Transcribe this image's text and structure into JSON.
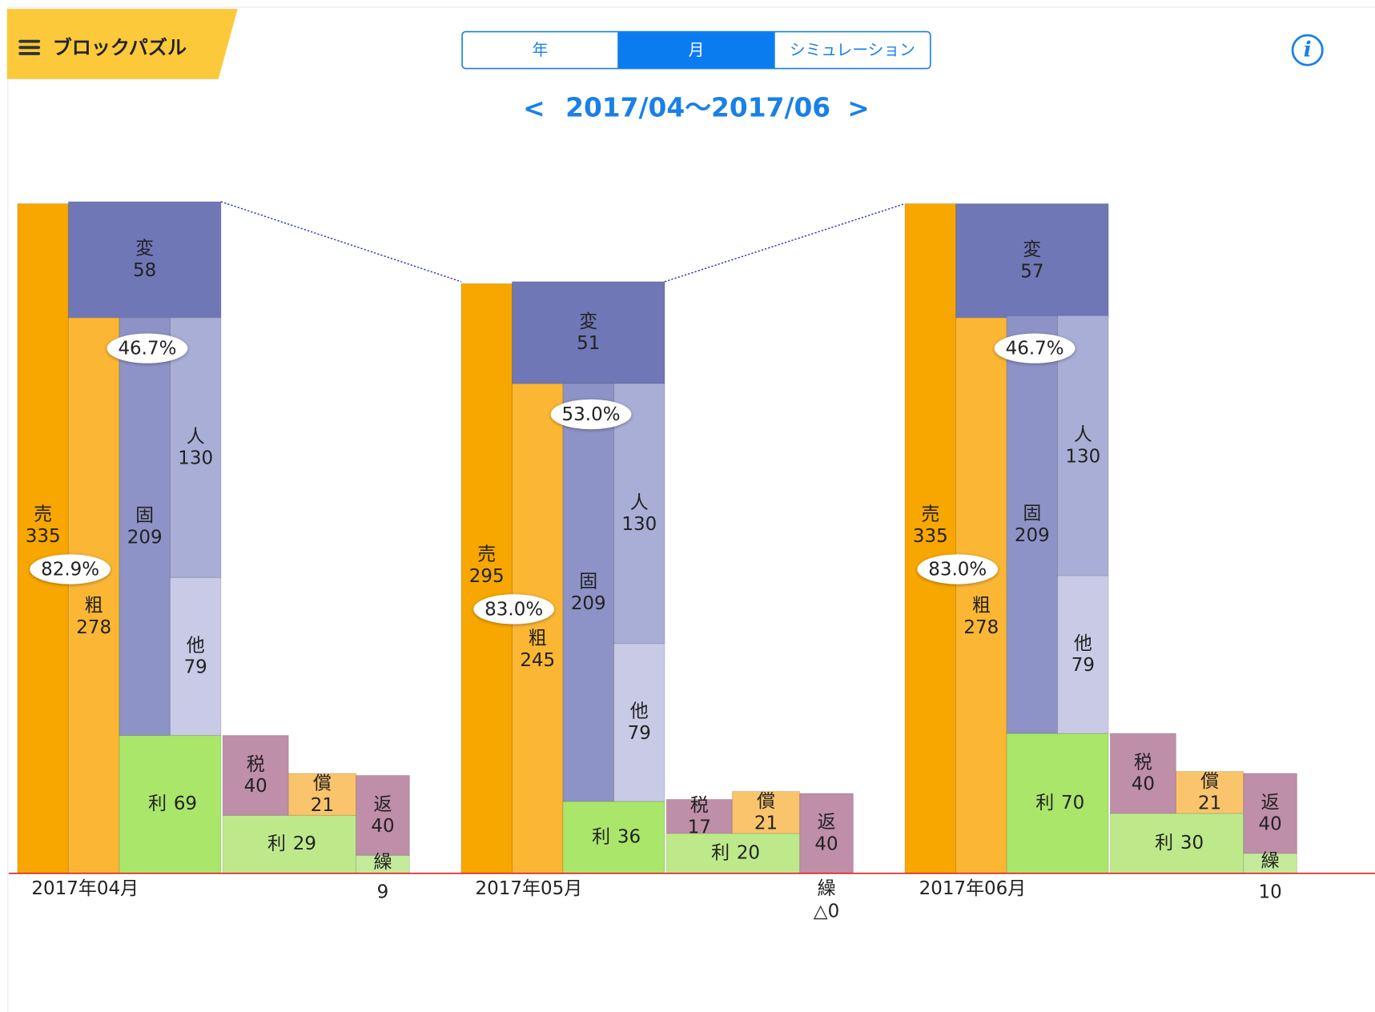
{
  "header": {
    "title": "ブロックパズル",
    "tabs": [
      "年",
      "月",
      "シミュレーション"
    ],
    "selected_tab": 1,
    "prev": "<",
    "period": "2017/04～2017/06",
    "next": ">"
  },
  "colors": {
    "sales": "#f8a700",
    "gross": "#fbb634",
    "variable": "#6f77b7",
    "fixed": "#8d93c6",
    "labor": "#a9aed6",
    "other": "#c8cae6",
    "profit": "#a9e66a",
    "tax": "#bf8ea9",
    "profit2": "#bde98b",
    "depreciation": "#f9c46b",
    "repay": "#bf8ea9",
    "carry": "#c3eb9b",
    "baseline": "#e02020",
    "connector": "#2a2ad0"
  },
  "months": [
    {
      "label": "2017年04月",
      "gross_ratio": "82.9%",
      "labor_ratio": "46.7%",
      "blocks": {
        "sales": {
          "name": "売",
          "value": 335
        },
        "gross": {
          "name": "粗",
          "value": 278
        },
        "variable": {
          "name": "変",
          "value": 58
        },
        "fixed": {
          "name": "固",
          "value": 209
        },
        "labor": {
          "name": "人",
          "value": 130
        },
        "other": {
          "name": "他",
          "value": 79
        },
        "profit": {
          "name": "利",
          "value": 69
        },
        "tax": {
          "name": "税",
          "value": 40
        },
        "profit2": {
          "name": "利",
          "value": 29
        },
        "depreciation": {
          "name": "償",
          "value": 21
        },
        "repay": {
          "name": "返",
          "value": 40
        },
        "carry": {
          "name": "繰",
          "value": 9
        }
      }
    },
    {
      "label": "2017年05月",
      "gross_ratio": "83.0%",
      "labor_ratio": "53.0%",
      "blocks": {
        "sales": {
          "name": "売",
          "value": 295
        },
        "gross": {
          "name": "粗",
          "value": 245
        },
        "variable": {
          "name": "変",
          "value": 51
        },
        "fixed": {
          "name": "固",
          "value": 209
        },
        "labor": {
          "name": "人",
          "value": 130
        },
        "other": {
          "name": "他",
          "value": 79
        },
        "profit": {
          "name": "利",
          "value": 36
        },
        "tax": {
          "name": "税",
          "value": 17
        },
        "profit2": {
          "name": "利",
          "value": 20
        },
        "depreciation": {
          "name": "償",
          "value": 21
        },
        "repay": {
          "name": "返",
          "value": 40
        },
        "carry": {
          "name": "繰",
          "value": 0,
          "label": "△0"
        }
      }
    },
    {
      "label": "2017年06月",
      "gross_ratio": "83.0%",
      "labor_ratio": "46.7%",
      "blocks": {
        "sales": {
          "name": "売",
          "value": 335
        },
        "gross": {
          "name": "粗",
          "value": 278
        },
        "variable": {
          "name": "変",
          "value": 57
        },
        "fixed": {
          "name": "固",
          "value": 209
        },
        "labor": {
          "name": "人",
          "value": 130
        },
        "other": {
          "name": "他",
          "value": 79
        },
        "profit": {
          "name": "利",
          "value": 70
        },
        "tax": {
          "name": "税",
          "value": 40
        },
        "profit2": {
          "name": "利",
          "value": 30
        },
        "depreciation": {
          "name": "償",
          "value": 21
        },
        "repay": {
          "name": "返",
          "value": 40
        },
        "carry": {
          "name": "繰",
          "value": 10
        }
      }
    }
  ]
}
